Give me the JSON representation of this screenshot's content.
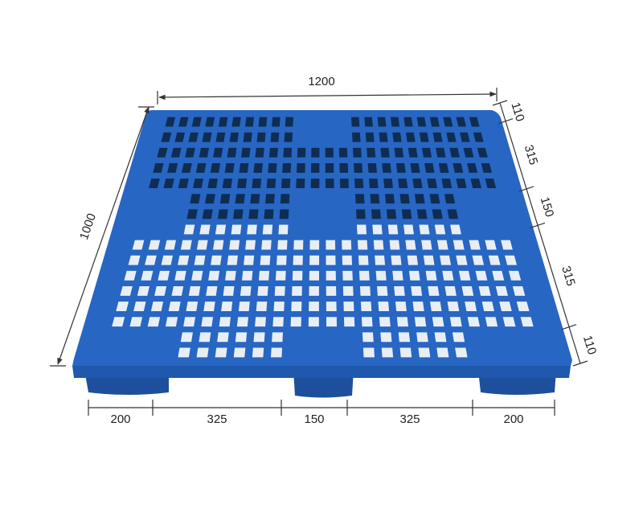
{
  "dimensions": {
    "length": "1200",
    "width": "1000",
    "side_segments": [
      "110",
      "315",
      "150",
      "315",
      "110"
    ],
    "bottom_segments": [
      "200",
      "325",
      "150",
      "325",
      "200"
    ]
  }
}
